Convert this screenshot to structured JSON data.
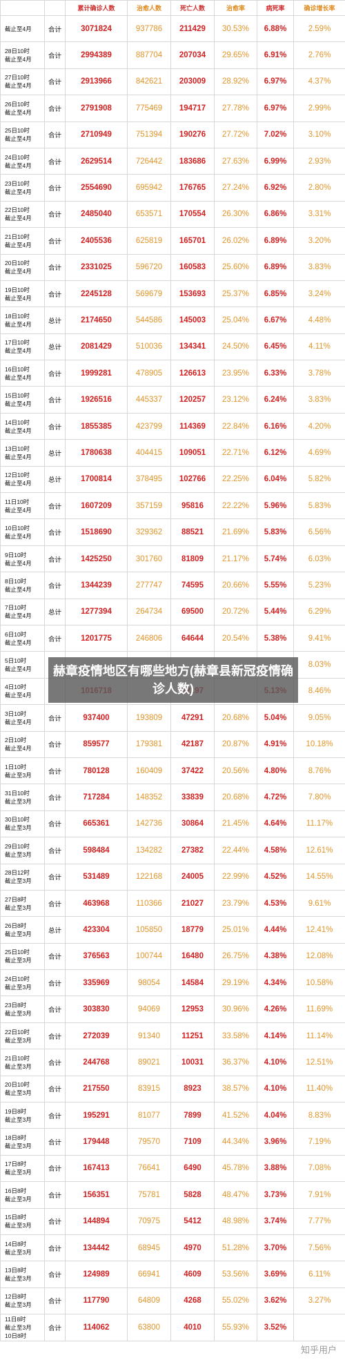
{
  "table": {
    "headers": [
      "",
      "",
      "累计确诊人数",
      "治愈人数",
      "死亡人数",
      "治愈率",
      "病死率",
      "确诊增长率"
    ],
    "rows": [
      {
        "date": "截止至4月",
        "label": "合计",
        "confirmed": "3071824",
        "cured": "937786",
        "deaths": "211429",
        "cure_rate": "30.53%",
        "fatality": "6.88%",
        "growth": "2.59%"
      },
      {
        "date": "28日10时\n截止至4月",
        "label": "合计",
        "confirmed": "2994389",
        "cured": "887704",
        "deaths": "207034",
        "cure_rate": "29.65%",
        "fatality": "6.91%",
        "growth": "2.76%"
      },
      {
        "date": "27日10时\n截止至4月",
        "label": "合计",
        "confirmed": "2913966",
        "cured": "842621",
        "deaths": "203009",
        "cure_rate": "28.92%",
        "fatality": "6.97%",
        "growth": "4.37%"
      },
      {
        "date": "26日10时\n截止至4月",
        "label": "合计",
        "confirmed": "2791908",
        "cured": "775469",
        "deaths": "194717",
        "cure_rate": "27.78%",
        "fatality": "6.97%",
        "growth": "2.99%"
      },
      {
        "date": "25日10时\n截止至4月",
        "label": "合计",
        "confirmed": "2710949",
        "cured": "751394",
        "deaths": "190276",
        "cure_rate": "27.72%",
        "fatality": "7.02%",
        "growth": "3.10%"
      },
      {
        "date": "24日10时\n截止至4月",
        "label": "合计",
        "confirmed": "2629514",
        "cured": "726442",
        "deaths": "183686",
        "cure_rate": "27.63%",
        "fatality": "6.99%",
        "growth": "2.93%"
      },
      {
        "date": "23日10时\n截止至4月",
        "label": "合计",
        "confirmed": "2554690",
        "cured": "695942",
        "deaths": "176765",
        "cure_rate": "27.24%",
        "fatality": "6.92%",
        "growth": "2.80%"
      },
      {
        "date": "22日10时\n截止至4月",
        "label": "合计",
        "confirmed": "2485040",
        "cured": "653571",
        "deaths": "170554",
        "cure_rate": "26.30%",
        "fatality": "6.86%",
        "growth": "3.31%"
      },
      {
        "date": "21日10时\n截止至4月",
        "label": "合计",
        "confirmed": "2405536",
        "cured": "625819",
        "deaths": "165701",
        "cure_rate": "26.02%",
        "fatality": "6.89%",
        "growth": "3.20%"
      },
      {
        "date": "20日10时\n截止至4月",
        "label": "合计",
        "confirmed": "2331025",
        "cured": "596720",
        "deaths": "160583",
        "cure_rate": "25.60%",
        "fatality": "6.89%",
        "growth": "3.83%"
      },
      {
        "date": "19日10时\n截止至4月",
        "label": "合计",
        "confirmed": "2245128",
        "cured": "569679",
        "deaths": "153693",
        "cure_rate": "25.37%",
        "fatality": "6.85%",
        "growth": "3.24%"
      },
      {
        "date": "18日10时\n截止至4月",
        "label": "总计",
        "confirmed": "2174650",
        "cured": "544586",
        "deaths": "145003",
        "cure_rate": "25.04%",
        "fatality": "6.67%",
        "growth": "4.48%"
      },
      {
        "date": "17日10时\n截止至4月",
        "label": "总计",
        "confirmed": "2081429",
        "cured": "510036",
        "deaths": "134341",
        "cure_rate": "24.50%",
        "fatality": "6.45%",
        "growth": "4.11%"
      },
      {
        "date": "16日10时\n截止至4月",
        "label": "合计",
        "confirmed": "1999281",
        "cured": "478905",
        "deaths": "126613",
        "cure_rate": "23.95%",
        "fatality": "6.33%",
        "growth": "3.78%"
      },
      {
        "date": "15日10时\n截止至4月",
        "label": "合计",
        "confirmed": "1926516",
        "cured": "445337",
        "deaths": "120257",
        "cure_rate": "23.12%",
        "fatality": "6.24%",
        "growth": "3.83%"
      },
      {
        "date": "14日10时\n截止至4月",
        "label": "合计",
        "confirmed": "1855385",
        "cured": "423799",
        "deaths": "114369",
        "cure_rate": "22.84%",
        "fatality": "6.16%",
        "growth": "4.20%"
      },
      {
        "date": "13日10时\n截止至4月",
        "label": "总计",
        "confirmed": "1780638",
        "cured": "404415",
        "deaths": "109051",
        "cure_rate": "22.71%",
        "fatality": "6.12%",
        "growth": "4.69%"
      },
      {
        "date": "12日10时\n截止至4月",
        "label": "总计",
        "confirmed": "1700814",
        "cured": "378495",
        "deaths": "102766",
        "cure_rate": "22.25%",
        "fatality": "6.04%",
        "growth": "5.82%"
      },
      {
        "date": "11日10时\n截止至4月",
        "label": "合计",
        "confirmed": "1607209",
        "cured": "357159",
        "deaths": "95816",
        "cure_rate": "22.22%",
        "fatality": "5.96%",
        "growth": "5.83%"
      },
      {
        "date": "10日10时\n截止至4月",
        "label": "合计",
        "confirmed": "1518690",
        "cured": "329362",
        "deaths": "88521",
        "cure_rate": "21.69%",
        "fatality": "5.83%",
        "growth": "6.56%"
      },
      {
        "date": "9日10时\n截止至4月",
        "label": "合计",
        "confirmed": "1425250",
        "cured": "301760",
        "deaths": "81809",
        "cure_rate": "21.17%",
        "fatality": "5.74%",
        "growth": "6.03%"
      },
      {
        "date": "8日10时\n截止至4月",
        "label": "合计",
        "confirmed": "1344239",
        "cured": "277747",
        "deaths": "74595",
        "cure_rate": "20.66%",
        "fatality": "5.55%",
        "growth": "5.23%"
      },
      {
        "date": "7日10时\n截止至4月",
        "label": "总计",
        "confirmed": "1277394",
        "cured": "264734",
        "deaths": "69500",
        "cure_rate": "20.72%",
        "fatality": "5.44%",
        "growth": "6.29%"
      },
      {
        "date": "6日10时\n截止至4月",
        "label": "合计",
        "confirmed": "1201775",
        "cured": "246806",
        "deaths": "64644",
        "cure_rate": "20.54%",
        "fatality": "5.38%",
        "growth": "9.41%"
      },
      {
        "date": "5日10时\n截止至4月",
        "label": "",
        "confirmed": "",
        "cured": "",
        "deaths": "",
        "cure_rate": "",
        "fatality": "",
        "growth": "8.03%"
      },
      {
        "date": "4日10时\n截止至4月",
        "label": "",
        "confirmed": "1016718",
        "cured": "",
        "deaths": "52197",
        "cure_rate": "",
        "fatality": "5.13%",
        "growth": "8.46%"
      },
      {
        "date": "3日10时\n截止至4月",
        "label": "合计",
        "confirmed": "937400",
        "cured": "193809",
        "deaths": "47291",
        "cure_rate": "20.68%",
        "fatality": "5.04%",
        "growth": "9.05%"
      },
      {
        "date": "2日10时\n截止至4月",
        "label": "合计",
        "confirmed": "859577",
        "cured": "179381",
        "deaths": "42187",
        "cure_rate": "20.87%",
        "fatality": "4.91%",
        "growth": "10.18%"
      },
      {
        "date": "1日10时\n截止至3月",
        "label": "合计",
        "confirmed": "780128",
        "cured": "160409",
        "deaths": "37422",
        "cure_rate": "20.56%",
        "fatality": "4.80%",
        "growth": "8.76%"
      },
      {
        "date": "31日10时\n截止至3月",
        "label": "合计",
        "confirmed": "717284",
        "cured": "148352",
        "deaths": "33839",
        "cure_rate": "20.68%",
        "fatality": "4.72%",
        "growth": "7.80%"
      },
      {
        "date": "30日10时\n截止至3月",
        "label": "合计",
        "confirmed": "665361",
        "cured": "142736",
        "deaths": "30864",
        "cure_rate": "21.45%",
        "fatality": "4.64%",
        "growth": "11.17%"
      },
      {
        "date": "29日10时\n截止至3月",
        "label": "合计",
        "confirmed": "598484",
        "cured": "134282",
        "deaths": "27382",
        "cure_rate": "22.44%",
        "fatality": "4.58%",
        "growth": "12.61%"
      },
      {
        "date": "28日12时\n截止至3月",
        "label": "合计",
        "confirmed": "531489",
        "cured": "122168",
        "deaths": "24005",
        "cure_rate": "22.99%",
        "fatality": "4.52%",
        "growth": "14.55%"
      },
      {
        "date": "27日8时\n截止至3月",
        "label": "合计",
        "confirmed": "463968",
        "cured": "110366",
        "deaths": "21027",
        "cure_rate": "23.79%",
        "fatality": "4.53%",
        "growth": "9.61%"
      },
      {
        "date": "26日8时\n截止至3月",
        "label": "总计",
        "confirmed": "423304",
        "cured": "105850",
        "deaths": "18779",
        "cure_rate": "25.01%",
        "fatality": "4.44%",
        "growth": "12.41%"
      },
      {
        "date": "25日10时\n截止至3月",
        "label": "合计",
        "confirmed": "376563",
        "cured": "100744",
        "deaths": "16480",
        "cure_rate": "26.75%",
        "fatality": "4.38%",
        "growth": "12.08%"
      },
      {
        "date": "24日10时\n截止至3月",
        "label": "合计",
        "confirmed": "335969",
        "cured": "98054",
        "deaths": "14584",
        "cure_rate": "29.19%",
        "fatality": "4.34%",
        "growth": "10.58%"
      },
      {
        "date": "23日8时\n截止至3月",
        "label": "合计",
        "confirmed": "303830",
        "cured": "94069",
        "deaths": "12953",
        "cure_rate": "30.96%",
        "fatality": "4.26%",
        "growth": "11.69%"
      },
      {
        "date": "22日10时\n截止至3月",
        "label": "合计",
        "confirmed": "272039",
        "cured": "91340",
        "deaths": "11251",
        "cure_rate": "33.58%",
        "fatality": "4.14%",
        "growth": "11.14%"
      },
      {
        "date": "21日10时\n截止至3月",
        "label": "合计",
        "confirmed": "244768",
        "cured": "89021",
        "deaths": "10031",
        "cure_rate": "36.37%",
        "fatality": "4.10%",
        "growth": "12.51%"
      },
      {
        "date": "20日10时\n截止至3月",
        "label": "合计",
        "confirmed": "217550",
        "cured": "83915",
        "deaths": "8923",
        "cure_rate": "38.57%",
        "fatality": "4.10%",
        "growth": "11.40%"
      },
      {
        "date": "19日8时\n截止至3月",
        "label": "合计",
        "confirmed": "195291",
        "cured": "81077",
        "deaths": "7899",
        "cure_rate": "41.52%",
        "fatality": "4.04%",
        "growth": "8.83%"
      },
      {
        "date": "18日8时\n截止至3月",
        "label": "合计",
        "confirmed": "179448",
        "cured": "79570",
        "deaths": "7109",
        "cure_rate": "44.34%",
        "fatality": "3.96%",
        "growth": "7.19%"
      },
      {
        "date": "17日8时\n截止至3月",
        "label": "合计",
        "confirmed": "167413",
        "cured": "76641",
        "deaths": "6490",
        "cure_rate": "45.78%",
        "fatality": "3.88%",
        "growth": "7.08%"
      },
      {
        "date": "16日8时\n截止至3月",
        "label": "合计",
        "confirmed": "156351",
        "cured": "75781",
        "deaths": "5828",
        "cure_rate": "48.47%",
        "fatality": "3.73%",
        "growth": "7.91%"
      },
      {
        "date": "15日8时\n截止至3月",
        "label": "合计",
        "confirmed": "144894",
        "cured": "70975",
        "deaths": "5412",
        "cure_rate": "48.98%",
        "fatality": "3.74%",
        "growth": "7.77%"
      },
      {
        "date": "14日8时\n截止至3月",
        "label": "合计",
        "confirmed": "134442",
        "cured": "68945",
        "deaths": "4970",
        "cure_rate": "51.28%",
        "fatality": "3.70%",
        "growth": "7.56%"
      },
      {
        "date": "13日8时\n截止至3月",
        "label": "合计",
        "confirmed": "124989",
        "cured": "66941",
        "deaths": "4609",
        "cure_rate": "53.56%",
        "fatality": "3.69%",
        "growth": "6.11%"
      },
      {
        "date": "12日8时\n截止至3月",
        "label": "合计",
        "confirmed": "117790",
        "cured": "64809",
        "deaths": "4268",
        "cure_rate": "55.02%",
        "fatality": "3.62%",
        "growth": "3.27%"
      },
      {
        "date": "11日8时\n截止至3月",
        "label": "合计",
        "confirmed": "114062",
        "cured": "63800",
        "deaths": "4010",
        "cure_rate": "55.93%",
        "fatality": "3.52%",
        "growth": ""
      }
    ],
    "last_row_date_tail": "10日8时"
  },
  "overlay": {
    "title": "赫章疫情地区有哪些地方(赫章县新冠疫情确诊人数)"
  },
  "watermark": "知乎用户",
  "colors": {
    "red": "#d21f1f",
    "orange": "#e2952a",
    "grid": "#d7d7d7"
  }
}
